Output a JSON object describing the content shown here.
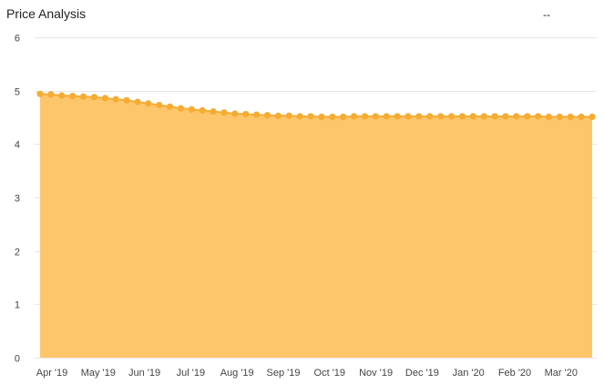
{
  "header": {
    "title": "Price Analysis",
    "value": "--"
  },
  "colors": {
    "area_fill": "#fec66b",
    "line": "#f5ac33",
    "marker": "#f5ac33",
    "grid": "#e6e6e6"
  },
  "chart_data": {
    "type": "area",
    "title": "Price Analysis",
    "xlabel": "",
    "ylabel": "",
    "ylim": [
      0,
      6
    ],
    "yticks": [
      0,
      1,
      2,
      3,
      4,
      5,
      6
    ],
    "grid": true,
    "legend": "none",
    "x_tick_labels": [
      "Apr '19",
      "May '19",
      "Jun '19",
      "Jul '19",
      "Aug '19",
      "Sep '19",
      "Oct '19",
      "Nov '19",
      "Dec '19",
      "Jan '20",
      "Feb '20",
      "Mar '20"
    ],
    "series": [
      {
        "values": [
          4.94,
          4.93,
          4.91,
          4.9,
          4.89,
          4.88,
          4.86,
          4.84,
          4.82,
          4.79,
          4.76,
          4.73,
          4.7,
          4.67,
          4.65,
          4.63,
          4.61,
          4.59,
          4.57,
          4.56,
          4.55,
          4.54,
          4.53,
          4.53,
          4.52,
          4.52,
          4.51,
          4.51,
          4.51,
          4.52,
          4.52,
          4.52,
          4.52,
          4.52,
          4.52,
          4.52,
          4.52,
          4.52,
          4.52,
          4.52,
          4.52,
          4.52,
          4.52,
          4.52,
          4.52,
          4.52,
          4.52,
          4.51,
          4.51,
          4.51,
          4.51,
          4.51
        ]
      }
    ]
  }
}
